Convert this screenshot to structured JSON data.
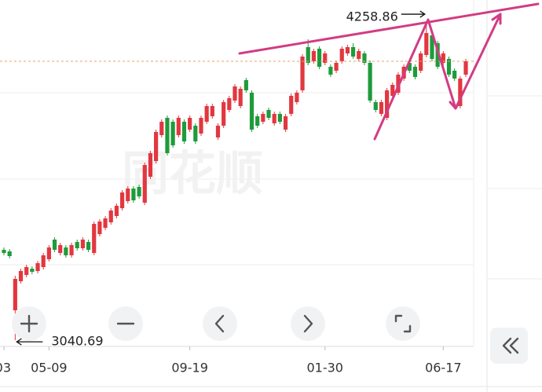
{
  "chart_data": {
    "type": "candlestick",
    "watermark": "同花顺",
    "up_color": "#e2373f",
    "down_color": "#1e9b3b",
    "ylim": [
      3020,
      4340
    ],
    "max_label": 4258.86,
    "min_label": 3040.69,
    "categories": [
      "03",
      null,
      null,
      null,
      null,
      null,
      null,
      null,
      "05-09",
      null,
      null,
      null,
      null,
      null,
      null,
      null,
      null,
      null,
      null,
      null,
      null,
      null,
      null,
      null,
      null,
      null,
      null,
      null,
      null,
      null,
      null,
      null,
      null,
      "09-19",
      null,
      null,
      null,
      null,
      null,
      null,
      null,
      null,
      null,
      null,
      null,
      null,
      null,
      null,
      null,
      null,
      null,
      null,
      null,
      null,
      null,
      null,
      null,
      "01-30",
      null,
      null,
      null,
      null,
      null,
      null,
      null,
      null,
      null,
      null,
      null,
      null,
      null,
      null,
      null,
      null,
      null,
      null,
      null,
      null,
      "06-17",
      null,
      null,
      null,
      null
    ],
    "ohlc": [
      [
        3386,
        3395,
        3365,
        3374
      ],
      [
        3380,
        3389,
        3353,
        3362
      ],
      [
        3155,
        3287,
        3040.69,
        3275
      ],
      [
        3266,
        3314,
        3257,
        3305
      ],
      [
        3290,
        3329,
        3281,
        3320
      ],
      [
        3314,
        3323,
        3293,
        3302
      ],
      [
        3305,
        3344,
        3296,
        3335
      ],
      [
        3320,
        3374,
        3311,
        3365
      ],
      [
        3350,
        3404,
        3341,
        3395
      ],
      [
        3425,
        3434,
        3377,
        3386
      ],
      [
        3374,
        3413,
        3365,
        3404
      ],
      [
        3395,
        3404,
        3356,
        3365
      ],
      [
        3365,
        3413,
        3356,
        3404
      ],
      [
        3416,
        3425,
        3383,
        3392
      ],
      [
        3392,
        3434,
        3383,
        3425
      ],
      [
        3416,
        3425,
        3377,
        3386
      ],
      [
        3374,
        3494,
        3365,
        3485
      ],
      [
        3446,
        3503,
        3437,
        3494
      ],
      [
        3470,
        3515,
        3461,
        3506
      ],
      [
        3491,
        3545,
        3482,
        3536
      ],
      [
        3515,
        3563,
        3506,
        3554
      ],
      [
        3545,
        3614,
        3536,
        3605
      ],
      [
        3572,
        3629,
        3563,
        3620
      ],
      [
        3620,
        3629,
        3566,
        3575
      ],
      [
        3626,
        3635,
        3581,
        3590
      ],
      [
        3566,
        3719,
        3557,
        3710
      ],
      [
        3665,
        3764,
        3656,
        3755
      ],
      [
        3725,
        3845,
        3716,
        3836
      ],
      [
        3824,
        3884,
        3815,
        3875
      ],
      [
        3890,
        3899,
        3746,
        3755
      ],
      [
        3875,
        3884,
        3776,
        3785
      ],
      [
        3824,
        3899,
        3815,
        3890
      ],
      [
        3875,
        3884,
        3791,
        3800
      ],
      [
        3845,
        3899,
        3836,
        3890
      ],
      [
        3860,
        3869,
        3791,
        3800
      ],
      [
        3830,
        3899,
        3821,
        3890
      ],
      [
        3875,
        3944,
        3866,
        3935
      ],
      [
        3896,
        3944,
        3887,
        3935
      ],
      [
        3815,
        3869,
        3806,
        3860
      ],
      [
        3860,
        3959,
        3851,
        3950
      ],
      [
        3920,
        3974,
        3911,
        3965
      ],
      [
        3956,
        4019,
        3947,
        4010
      ],
      [
        3935,
        4010,
        3926,
        4001
      ],
      [
        4034,
        4043,
        3986,
        3995
      ],
      [
        3986,
        3995,
        3836,
        3845
      ],
      [
        3896,
        3905,
        3851,
        3860
      ],
      [
        3875,
        3914,
        3866,
        3905
      ],
      [
        3920,
        3929,
        3881,
        3890
      ],
      [
        3869,
        3914,
        3860,
        3905
      ],
      [
        3905,
        3914,
        3866,
        3875
      ],
      [
        3845,
        3905,
        3836,
        3896
      ],
      [
        3905,
        3983,
        3896,
        3974
      ],
      [
        3950,
        3995,
        3941,
        3986
      ],
      [
        3995,
        4133,
        3986,
        4124
      ],
      [
        4160,
        4190,
        4091,
        4100
      ],
      [
        4106,
        4154,
        4097,
        4145
      ],
      [
        4154,
        4163,
        4076,
        4085
      ],
      [
        4100,
        4145,
        4091,
        4136
      ],
      [
        4085,
        4094,
        4046,
        4055
      ],
      [
        4070,
        4109,
        4061,
        4100
      ],
      [
        4106,
        4163,
        4097,
        4154
      ],
      [
        4136,
        4169,
        4127,
        4160
      ],
      [
        4160,
        4175,
        4115,
        4124
      ],
      [
        4115,
        4154,
        4106,
        4145
      ],
      [
        4136,
        4145,
        4091,
        4100
      ],
      [
        4100,
        4109,
        3947,
        3956
      ],
      [
        3950,
        3959,
        3911,
        3920
      ],
      [
        3905,
        3959,
        3896,
        3950
      ],
      [
        3890,
        4004,
        3881,
        3995
      ],
      [
        3974,
        4025,
        3965,
        4016
      ],
      [
        3986,
        4064,
        3977,
        4055
      ],
      [
        4040,
        4094,
        4031,
        4085
      ],
      [
        4100,
        4109,
        4061,
        4070
      ],
      [
        4085,
        4094,
        4037,
        4046
      ],
      [
        4070,
        4145,
        4061,
        4136
      ],
      [
        4130,
        4258.86,
        4121,
        4214
      ],
      [
        4205,
        4214,
        4106,
        4115
      ],
      [
        4175,
        4184,
        4076,
        4085
      ],
      [
        4100,
        4145,
        4091,
        4136
      ],
      [
        4115,
        4124,
        4046,
        4055
      ],
      [
        4070,
        4079,
        4031,
        4040
      ],
      [
        3935,
        4049,
        3926,
        4040
      ],
      [
        4055,
        4115,
        4046,
        4106
      ]
    ]
  }
}
